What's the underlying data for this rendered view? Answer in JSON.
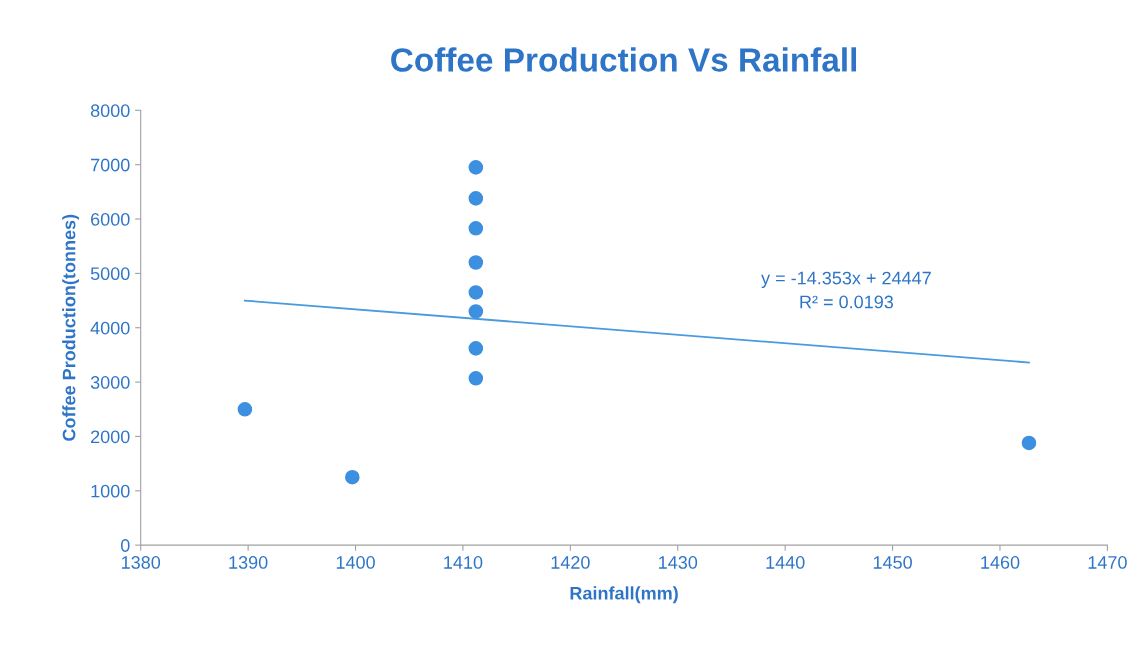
{
  "chart_data": {
    "type": "scatter",
    "title": "Coffee Production Vs Rainfall",
    "xlabel": "Rainfall(mm)",
    "ylabel": "Coffee Production(tonnes)",
    "xlim": [
      1380,
      1470
    ],
    "xticks": [
      1380,
      1390,
      1400,
      1410,
      1420,
      1430,
      1440,
      1450,
      1460,
      1470
    ],
    "ylim": [
      0,
      8000
    ],
    "yticks": [
      0,
      1000,
      2000,
      3000,
      4000,
      5000,
      6000,
      7000,
      8000
    ],
    "grid": false,
    "series": [
      {
        "marker": "circle",
        "color": "#3d8fe0",
        "x": [
          1389.7,
          1399.7,
          1411.2,
          1411.2,
          1411.2,
          1411.2,
          1411.2,
          1411.2,
          1411.2,
          1411.2,
          1462.7
        ],
        "values": [
          2500,
          1250,
          6950,
          6380,
          5830,
          5200,
          4650,
          4300,
          3620,
          3070,
          1880
        ]
      },
      {
        "type": "line",
        "marker": "none",
        "color": "#4a9ae0",
        "x": [
          1389.7,
          1462.7
        ],
        "values": [
          4500,
          3360
        ]
      }
    ],
    "annotations": [
      "y = -14.353x + 24447",
      "R² = 0.0193"
    ]
  }
}
